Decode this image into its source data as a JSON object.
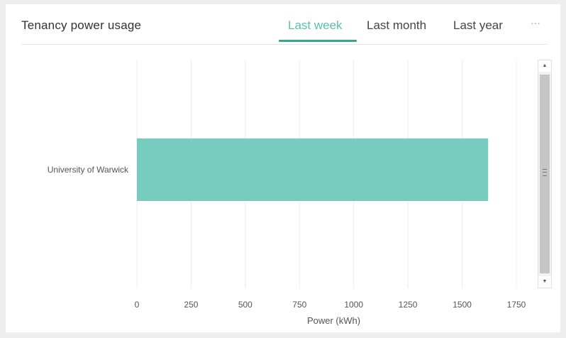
{
  "header": {
    "title": "Tenancy power usage",
    "tabs": [
      {
        "label": "Last week",
        "active": true
      },
      {
        "label": "Last month",
        "active": false
      },
      {
        "label": "Last year",
        "active": false
      }
    ],
    "more_label": "···"
  },
  "colors": {
    "accent": "#3aa48f",
    "active_tab_text": "#5bbfae",
    "bar": "#76cdbf",
    "grid": "#ececec"
  },
  "chart_data": {
    "type": "bar",
    "orientation": "horizontal",
    "categories": [
      "University of Warwick"
    ],
    "values": [
      1620
    ],
    "title": "",
    "xlabel": "Power (kWh)",
    "ylabel": "",
    "xlim": [
      0,
      1750
    ],
    "xticks": [
      0,
      250,
      500,
      750,
      1000,
      1250,
      1500,
      1750
    ],
    "xtick_labels": [
      "0",
      "250",
      "500",
      "750",
      "1000",
      "1250",
      "1500",
      "1750"
    ],
    "grid": true
  }
}
